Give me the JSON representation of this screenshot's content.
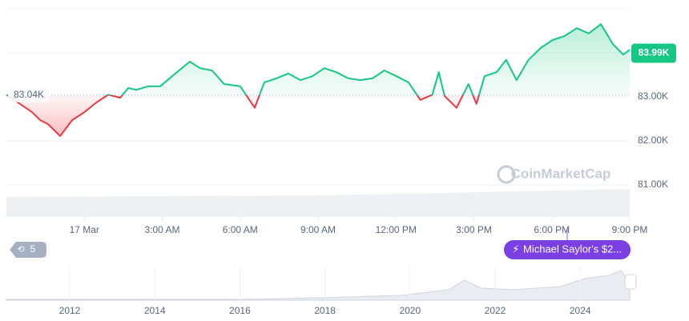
{
  "chart_data": {
    "type": "line",
    "watermark": "CoinMarketCap",
    "badge_count": "5",
    "event_label": "Michael Saylor's $2...",
    "baseline": {
      "value": 83.04,
      "label": "83.04K"
    },
    "current": {
      "value": 83.99,
      "label": "83.99K"
    },
    "x": [
      -3.0,
      -2.48,
      -2.01,
      -1.7,
      -1.4,
      -0.93,
      -0.47,
      0,
      0.46,
      0.92,
      1.38,
      1.69,
      2.0,
      2.46,
      2.92,
      3.38,
      4.06,
      4.46,
      4.92,
      5.38,
      6.0,
      6.56,
      6.93,
      7.39,
      7.85,
      8.32,
      8.78,
      9.24,
      9.7,
      10.17,
      10.63,
      11.09,
      11.55,
      12.02,
      12.48,
      12.94,
      13.4,
      13.65,
      13.87,
      14.33,
      14.79,
      15.1,
      15.41,
      15.87,
      16.24,
      16.64,
      17.1,
      17.57,
      18.03,
      18.49,
      18.96,
      19.42,
      19.89,
      20.35,
      20.75,
      21.0
    ],
    "series": [
      {
        "name": "Price",
        "color": "#16c784",
        "color_below": "#ea3943",
        "values": [
          83.05,
          82.84,
          82.65,
          82.47,
          82.38,
          82.11,
          82.47,
          82.65,
          82.87,
          83.05,
          82.98,
          83.2,
          83.16,
          83.24,
          83.24,
          83.47,
          83.8,
          83.65,
          83.6,
          83.29,
          83.24,
          82.75,
          83.33,
          83.42,
          83.53,
          83.38,
          83.47,
          83.65,
          83.56,
          83.42,
          83.38,
          83.42,
          83.6,
          83.47,
          83.33,
          82.93,
          83.05,
          83.56,
          83.02,
          82.75,
          83.29,
          82.84,
          83.47,
          83.56,
          83.84,
          83.38,
          83.84,
          84.11,
          84.29,
          84.38,
          84.56,
          84.44,
          84.65,
          84.2,
          83.96,
          84.07
        ]
      }
    ],
    "xlim": [
      -3,
      21
    ],
    "xticks": [
      {
        "value": 0,
        "label": "17 Mar"
      },
      {
        "value": 3,
        "label": "3:00 AM"
      },
      {
        "value": 6,
        "label": "6:00 AM"
      },
      {
        "value": 9,
        "label": "9:00 AM"
      },
      {
        "value": 12,
        "label": "12:00 PM"
      },
      {
        "value": 15,
        "label": "3:00 PM"
      },
      {
        "value": 18,
        "label": "6:00 PM"
      },
      {
        "value": 21,
        "label": "9:00 PM"
      }
    ],
    "ylim": [
      80.8,
      85
    ],
    "yticks": [
      {
        "value": 81,
        "label": "81.00K"
      },
      {
        "value": 82,
        "label": "82.00K"
      },
      {
        "value": 83,
        "label": "83.00K"
      }
    ],
    "grid": true,
    "navigator_labels": [
      "2012",
      "2014",
      "2016",
      "2018",
      "2020",
      "2022",
      "2024"
    ]
  }
}
